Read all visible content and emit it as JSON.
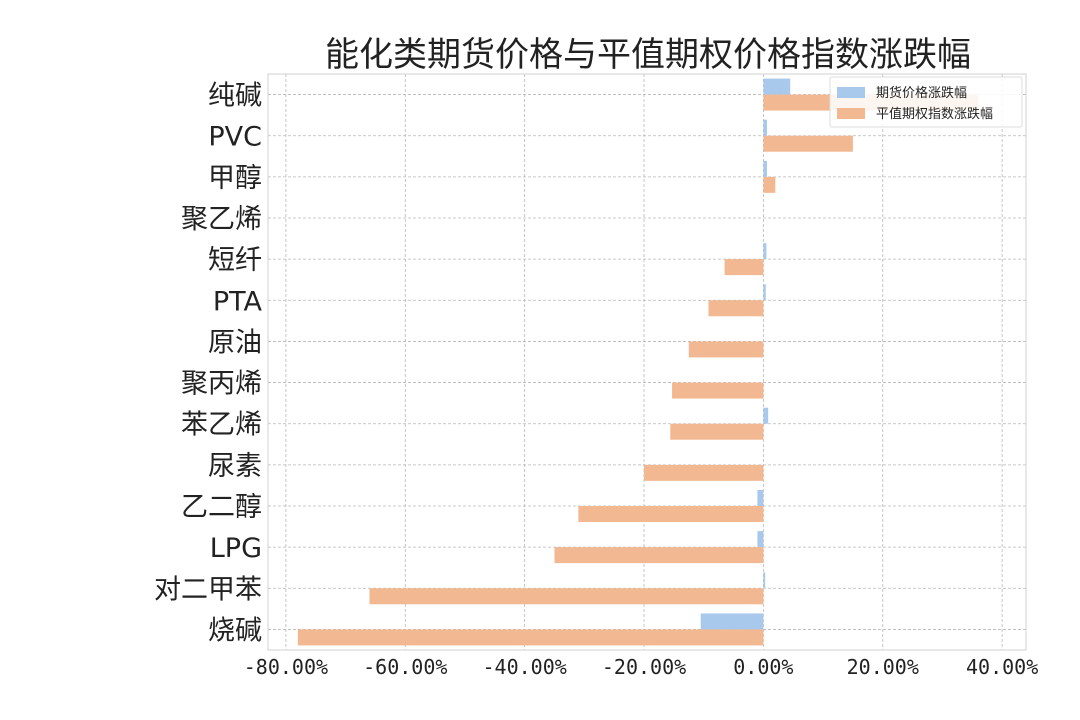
{
  "chart_data": {
    "type": "bar",
    "orientation": "horizontal",
    "title": "能化类期货价格与平值期权价格指数涨跌幅",
    "categories": [
      "纯碱",
      "PVC",
      "甲醇",
      "聚乙烯",
      "短纤",
      "PTA",
      "原油",
      "聚丙烯",
      "苯乙烯",
      "尿素",
      "乙二醇",
      "LPG",
      "对二甲苯",
      "烧碱"
    ],
    "series": [
      {
        "name": "期货价格涨跌幅",
        "color": "#a8c8ec",
        "values": [
          4.5,
          0.6,
          0.6,
          0.0,
          0.5,
          0.4,
          0.0,
          0.0,
          0.8,
          0.0,
          -1.0,
          -1.0,
          0.3,
          -10.5
        ]
      },
      {
        "name": "平值期权指数涨跌幅",
        "color": "#f2b891",
        "values": [
          36.0,
          15.0,
          2.0,
          0.0,
          -6.5,
          -9.2,
          -12.5,
          -15.3,
          -15.6,
          -20.0,
          -31.0,
          -35.0,
          -66.0,
          -78.0
        ]
      }
    ],
    "xlim": [
      -83,
      44
    ],
    "xticks": [
      -80,
      -60,
      -40,
      -20,
      0,
      20,
      40
    ],
    "xtick_labels": [
      "-80.00%",
      "-60.00%",
      "-40.00%",
      "-20.00%",
      "0.00%",
      "20.00%",
      "40.00%"
    ],
    "grid": true,
    "legend_position": "top-right"
  }
}
